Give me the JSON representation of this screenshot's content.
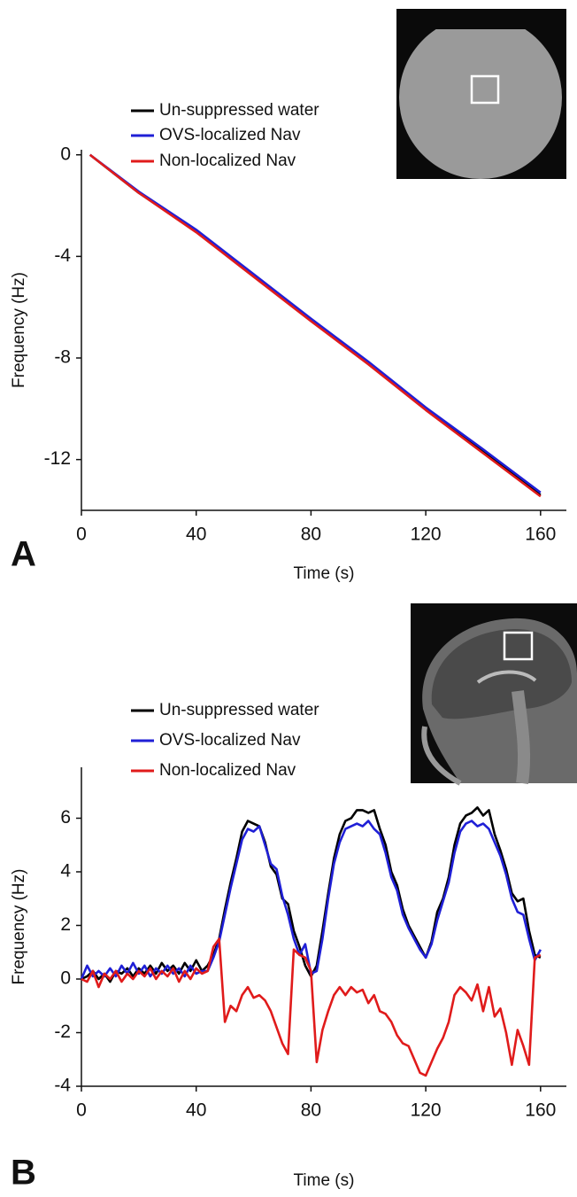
{
  "chart_data": [
    {
      "type": "line",
      "panel_label": "A",
      "xlabel": "Time (s)",
      "ylabel": "Frequency (Hz)",
      "xlim": [
        0,
        169
      ],
      "ylim": [
        -14,
        0.2
      ],
      "xticks": [
        0,
        40,
        80,
        120,
        160
      ],
      "yticks": [
        0,
        -4,
        -8,
        -12
      ],
      "x": [
        3,
        20,
        40,
        60,
        80,
        100,
        120,
        140,
        160
      ],
      "series": [
        {
          "name": "Un-suppressed water",
          "color": "#000000",
          "values": [
            0,
            -1.5,
            -3.0,
            -4.75,
            -6.5,
            -8.2,
            -10.0,
            -11.7,
            -13.4
          ]
        },
        {
          "name": "OVS-localized Nav",
          "color": "#1f1fd6",
          "values": [
            0,
            -1.45,
            -2.95,
            -4.7,
            -6.45,
            -8.15,
            -9.95,
            -11.6,
            -13.3
          ]
        },
        {
          "name": "Non-localized Nav",
          "color": "#e01b1b",
          "values": [
            0,
            -1.5,
            -3.05,
            -4.8,
            -6.55,
            -8.25,
            -10.05,
            -11.75,
            -13.45
          ]
        }
      ]
    },
    {
      "type": "line",
      "panel_label": "B",
      "xlabel": "Time (s)",
      "ylabel": "Frequency (Hz)",
      "xlim": [
        0,
        169
      ],
      "ylim": [
        -4,
        7.9
      ],
      "xticks": [
        0,
        40,
        80,
        120,
        160
      ],
      "yticks": [
        6,
        4,
        2,
        0,
        -2,
        -4
      ],
      "x": [
        0,
        2,
        4,
        6,
        8,
        10,
        12,
        14,
        16,
        18,
        20,
        22,
        24,
        26,
        28,
        30,
        32,
        34,
        36,
        38,
        40,
        42,
        44,
        46,
        48,
        50,
        52,
        54,
        56,
        58,
        60,
        62,
        64,
        66,
        68,
        70,
        72,
        74,
        76,
        78,
        80,
        82,
        84,
        86,
        88,
        90,
        92,
        94,
        96,
        98,
        100,
        102,
        104,
        106,
        108,
        110,
        112,
        114,
        116,
        118,
        120,
        122,
        124,
        126,
        128,
        130,
        132,
        134,
        136,
        138,
        140,
        142,
        144,
        146,
        148,
        150,
        152,
        154,
        156,
        158,
        160
      ],
      "series": [
        {
          "name": "Un-suppressed water",
          "color": "#000000",
          "values": [
            0,
            0.1,
            0.3,
            0,
            0.2,
            -0.1,
            0.3,
            0.2,
            0.4,
            0.1,
            0.4,
            0.2,
            0.5,
            0.2,
            0.6,
            0.3,
            0.5,
            0.2,
            0.6,
            0.3,
            0.7,
            0.3,
            0.5,
            0.9,
            1.5,
            2.6,
            3.6,
            4.5,
            5.5,
            5.9,
            5.8,
            5.7,
            5.1,
            4.2,
            3.9,
            3.0,
            2.8,
            1.8,
            1.2,
            0.5,
            0.1,
            0.5,
            1.8,
            3.2,
            4.5,
            5.4,
            5.9,
            6.0,
            6.3,
            6.3,
            6.2,
            6.3,
            5.6,
            5.0,
            4.0,
            3.5,
            2.6,
            2.0,
            1.6,
            1.2,
            0.8,
            1.4,
            2.5,
            3.0,
            3.8,
            5.0,
            5.8,
            6.1,
            6.2,
            6.4,
            6.1,
            6.3,
            5.4,
            4.8,
            4.1,
            3.2,
            2.9,
            3.0,
            1.8,
            0.9,
            0.8
          ]
        },
        {
          "name": "OVS-localized Nav",
          "color": "#1f1fd6",
          "values": [
            0,
            0.5,
            0.1,
            0.3,
            0.1,
            0.4,
            0.1,
            0.5,
            0.2,
            0.6,
            0.2,
            0.5,
            0.1,
            0.4,
            0.2,
            0.5,
            0.2,
            0.4,
            0.1,
            0.5,
            0.2,
            0.3,
            0.3,
            0.8,
            1.4,
            2.4,
            3.4,
            4.3,
            5.2,
            5.6,
            5.5,
            5.7,
            5.0,
            4.3,
            4.1,
            3.1,
            2.4,
            1.5,
            0.9,
            1.3,
            0.2,
            0.3,
            1.5,
            3.0,
            4.3,
            5.1,
            5.6,
            5.7,
            5.8,
            5.7,
            5.9,
            5.6,
            5.4,
            4.7,
            3.8,
            3.3,
            2.4,
            1.9,
            1.5,
            1.1,
            0.8,
            1.3,
            2.2,
            2.9,
            3.6,
            4.7,
            5.5,
            5.8,
            5.9,
            5.7,
            5.8,
            5.6,
            5.1,
            4.6,
            3.9,
            3.0,
            2.5,
            2.4,
            1.5,
            0.7,
            1.1
          ]
        },
        {
          "name": "Non-localized Nav",
          "color": "#e01b1b",
          "values": [
            0,
            -0.1,
            0.3,
            -0.3,
            0.2,
            0,
            0.3,
            -0.1,
            0.2,
            0,
            0.3,
            0.1,
            0.4,
            0,
            0.3,
            0.1,
            0.4,
            -0.1,
            0.3,
            0,
            0.4,
            0.2,
            0.3,
            1.2,
            1.5,
            -1.6,
            -1.0,
            -1.2,
            -0.6,
            -0.3,
            -0.7,
            -0.6,
            -0.8,
            -1.2,
            -1.8,
            -2.4,
            -2.8,
            1.1,
            0.9,
            0.8,
            0.3,
            -3.1,
            -1.9,
            -1.2,
            -0.6,
            -0.3,
            -0.6,
            -0.3,
            -0.5,
            -0.4,
            -0.9,
            -0.6,
            -1.2,
            -1.3,
            -1.6,
            -2.1,
            -2.4,
            -2.5,
            -3.0,
            -3.5,
            -3.6,
            -3.1,
            -2.6,
            -2.2,
            -1.6,
            -0.6,
            -0.3,
            -0.5,
            -0.8,
            -0.2,
            -1.2,
            -0.3,
            -1.4,
            -1.1,
            -2.0,
            -3.2,
            -1.9,
            -2.5,
            -3.2,
            0.8,
            0.9
          ]
        }
      ]
    }
  ]
}
